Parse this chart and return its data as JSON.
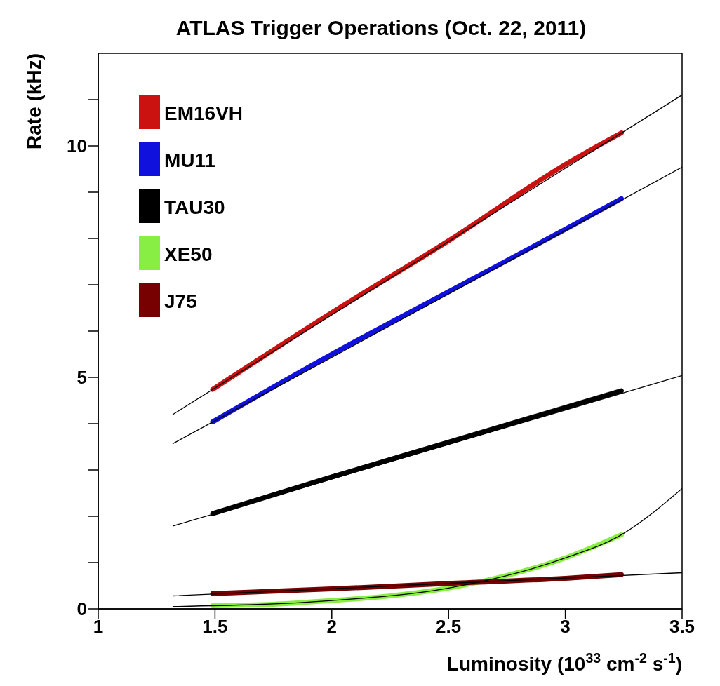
{
  "chart_data": {
    "type": "line",
    "title": "ATLAS Trigger Operations (Oct. 22, 2011)",
    "xlabel": "Luminosity (10$^{33}$ cm$^{-2}$ s$^{-1}$)",
    "ylabel": "Rate (kHz)",
    "xlim": [
      1,
      3.5
    ],
    "xticks": [
      1,
      1.5,
      2,
      2.5,
      3,
      3.5
    ],
    "ylim": [
      0,
      12
    ],
    "yticks": [
      0,
      {
        "value": 1,
        "label": null
      },
      {
        "value": 2,
        "label": null
      },
      {
        "value": 3,
        "label": null
      },
      {
        "value": 4,
        "label": null
      },
      5,
      {
        "value": 6,
        "label": null
      },
      {
        "value": 7,
        "label": null
      },
      {
        "value": 8,
        "label": null
      },
      {
        "value": 9,
        "label": null
      },
      10,
      {
        "value": 11,
        "label": null
      }
    ],
    "legend": "top left",
    "marker": "none",
    "line_style": "solid",
    "series": [
      {
        "name": "EM16VH",
        "color": "#cc1111",
        "x": [
          1.49,
          2.0,
          2.5,
          3.0,
          3.24
        ],
        "values": [
          4.74,
          6.4,
          7.95,
          9.6,
          10.28
        ]
      },
      {
        "name": "MU11",
        "color": "#1111dd",
        "x": [
          1.49,
          2.0,
          2.5,
          3.0,
          3.24
        ],
        "values": [
          4.04,
          5.5,
          6.85,
          8.2,
          8.86
        ]
      },
      {
        "name": "TAU30",
        "color": "#000000",
        "x": [
          1.49,
          2.0,
          2.5,
          3.0,
          3.24
        ],
        "values": [
          2.06,
          2.85,
          3.6,
          4.35,
          4.71
        ]
      },
      {
        "name": "XE50",
        "color": "#88ee44",
        "x": [
          1.49,
          1.75,
          2.0,
          2.25,
          2.5,
          2.75,
          3.0,
          3.24
        ],
        "values": [
          0.07,
          0.1,
          0.18,
          0.28,
          0.45,
          0.72,
          1.1,
          1.6
        ]
      },
      {
        "name": "J75",
        "color": "#770000",
        "x": [
          1.49,
          2.0,
          2.5,
          3.0,
          3.24
        ],
        "values": [
          0.33,
          0.43,
          0.55,
          0.66,
          0.74
        ]
      },
      {
        "color": "#000000",
        "x": [
          1.32,
          3.5
        ],
        "values": [
          4.2,
          11.1
        ]
      },
      {
        "color": "#000000",
        "x": [
          1.32,
          3.5
        ],
        "values": [
          3.57,
          9.54
        ]
      },
      {
        "color": "#000000",
        "x": [
          1.32,
          3.5
        ],
        "values": [
          1.79,
          5.04
        ]
      },
      {
        "color": "#000000",
        "x": [
          1.32,
          2.0,
          2.5,
          3.0,
          3.24,
          3.5
        ],
        "values": [
          0.05,
          0.18,
          0.45,
          1.1,
          1.6,
          2.6
        ]
      },
      {
        "color": "#000000",
        "x": [
          1.32,
          3.5
        ],
        "values": [
          0.28,
          0.78
        ]
      }
    ]
  }
}
